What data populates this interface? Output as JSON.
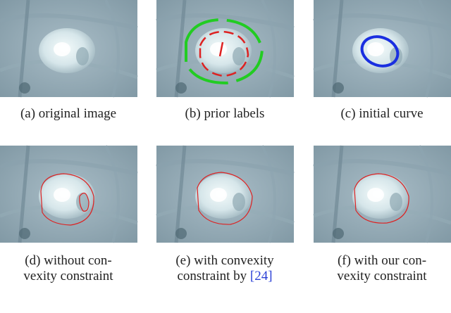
{
  "panels": [
    {
      "caption_lines": [
        "(a) original image"
      ]
    },
    {
      "caption_lines": [
        "(b) prior labels"
      ]
    },
    {
      "caption_lines": [
        "(c) initial curve"
      ]
    },
    {
      "caption_lines": [
        "(d) without con-",
        "vexity constraint"
      ]
    },
    {
      "caption_lines": [
        "(e) with convexity",
        "constraint by"
      ],
      "reference": "[24]"
    },
    {
      "caption_lines": [
        "(f) with our con-",
        "vexity constraint"
      ]
    }
  ]
}
